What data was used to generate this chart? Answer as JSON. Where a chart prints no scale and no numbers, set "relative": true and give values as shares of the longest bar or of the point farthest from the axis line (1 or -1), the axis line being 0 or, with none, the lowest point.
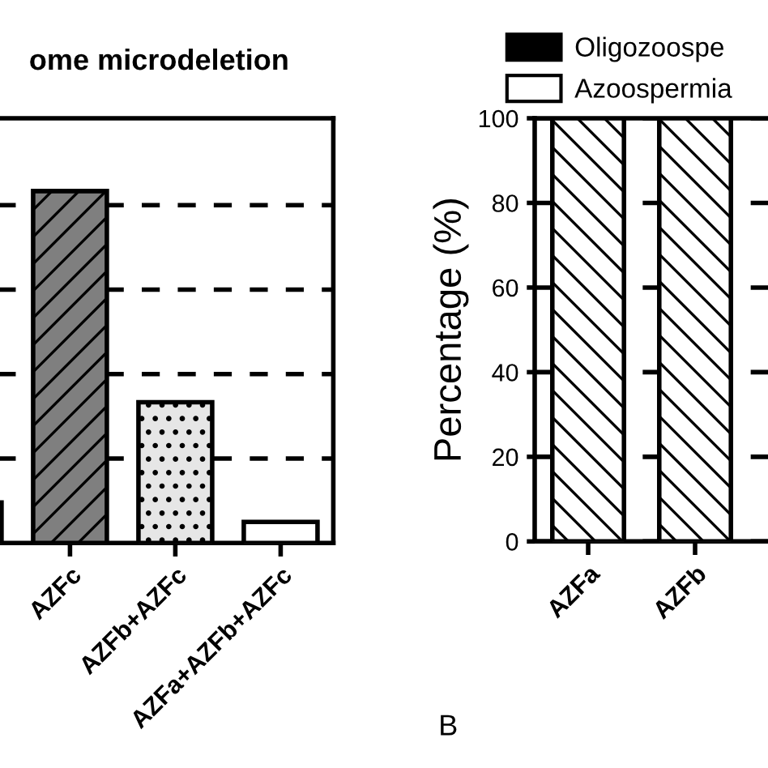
{
  "chart_data": [
    {
      "type": "bar",
      "title": "ome microdeletion",
      "categories": [
        null,
        "AZFc",
        "AZFb+AZFc",
        "AZFa+AZFb+AZFc"
      ],
      "relative": true,
      "values": [
        0.115,
        1,
        0.4,
        0.06
      ],
      "colors": [
        "#d9d9d9",
        "#7f7f7f",
        "#e6e6e6",
        "#ffffff"
      ],
      "grid": "y",
      "tick_labels": "x"
    },
    {
      "type": "bar",
      "ylabel": "Percentage (%)",
      "categories": [
        "AZFa",
        "AZFb",
        null
      ],
      "series": [
        {
          "name": "Oligozoospe",
          "color": "#000000",
          "values": [
            0,
            0,
            null
          ]
        },
        {
          "name": "Azoospermia",
          "color": "#ffffff",
          "values": [
            100,
            100,
            null
          ]
        }
      ],
      "ylim": [
        0,
        100
      ],
      "yticks": [
        0,
        20,
        40,
        60,
        80,
        100
      ],
      "grid": "y",
      "legend": "top",
      "annotations": [
        "B"
      ]
    }
  ]
}
